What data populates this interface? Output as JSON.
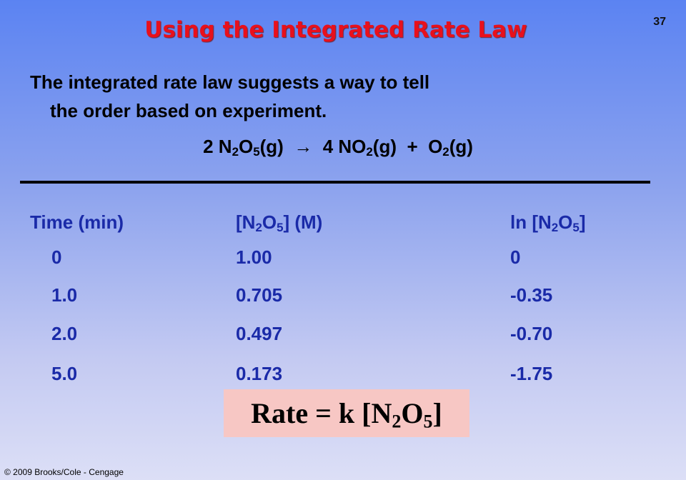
{
  "page_number": "37",
  "title": "Using the Integrated Rate Law",
  "body": [
    "The integrated rate law suggests a way to tell",
    "the order based on experiment."
  ],
  "equation": [
    {
      "text": "2 N",
      "sub": "2"
    },
    {
      "text": "O",
      "sub": "5"
    },
    {
      "text": "(g)  →  4 NO",
      "sub": "2"
    },
    {
      "text": "(g)  +  O",
      "sub": "2"
    },
    {
      "text": "(g)"
    }
  ],
  "table": {
    "header": [
      [
        {
          "text": "Time (min)"
        }
      ],
      [
        {
          "text": "[N",
          "sub": "2"
        },
        {
          "text": "O",
          "sub": "5"
        },
        {
          "text": "] (M)"
        }
      ],
      [
        {
          "text": "ln [N",
          "sub": "2"
        },
        {
          "text": "O",
          "sub": "5"
        },
        {
          "text": "]"
        }
      ]
    ],
    "rows": [
      [
        "0",
        "1.00",
        "0"
      ],
      [
        "1.0",
        "0.705",
        "-0.35"
      ],
      [
        "2.0",
        "0.497",
        "-0.70"
      ],
      [
        "5.0",
        "0.173",
        "-1.75"
      ]
    ]
  },
  "rate_law": [
    {
      "text": "Rate = k [N",
      "sub": "2"
    },
    {
      "text": "O",
      "sub": "5"
    },
    {
      "text": "]"
    }
  ],
  "footer": "© 2009 Brooks/Cole - Cengage"
}
